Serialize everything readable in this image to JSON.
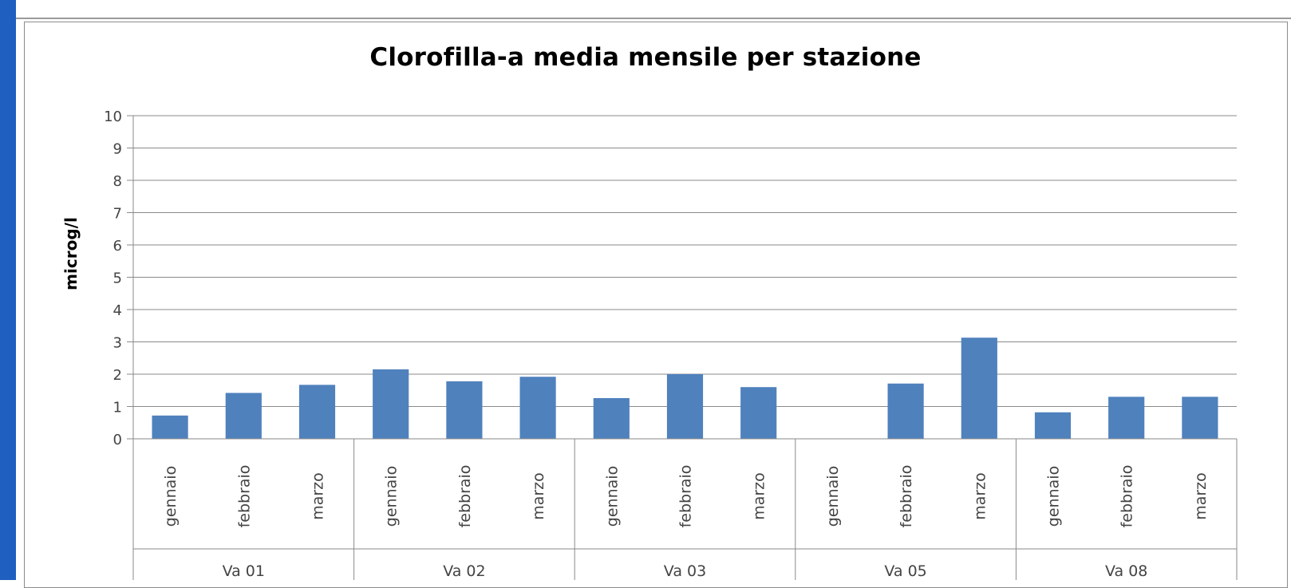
{
  "chart_data": {
    "type": "bar",
    "title": "Clorofilla-a media mensile per stazione",
    "ylabel": "microg/l",
    "xlabel": "",
    "ylim": [
      0,
      10
    ],
    "yticks": [
      0,
      1,
      2,
      3,
      4,
      5,
      6,
      7,
      8,
      9,
      10
    ],
    "grid": true,
    "legend": "none",
    "bar_color": "#4f81bd",
    "groups": [
      {
        "name": "Va 01",
        "categories": [
          "gennaio",
          "febbraio",
          "marzo"
        ],
        "values": [
          0.72,
          1.42,
          1.67
        ]
      },
      {
        "name": "Va 02",
        "categories": [
          "gennaio",
          "febbraio",
          "marzo"
        ],
        "values": [
          2.15,
          1.78,
          1.92
        ]
      },
      {
        "name": "Va 03",
        "categories": [
          "gennaio",
          "febbraio",
          "marzo"
        ],
        "values": [
          1.26,
          2.0,
          1.6
        ]
      },
      {
        "name": "Va 05",
        "categories": [
          "gennaio",
          "febbraio",
          "marzo"
        ],
        "values": [
          0,
          1.71,
          3.13
        ]
      },
      {
        "name": "Va 08",
        "categories": [
          "gennaio",
          "febbraio",
          "marzo"
        ],
        "values": [
          0.82,
          1.3,
          1.3
        ]
      }
    ]
  }
}
